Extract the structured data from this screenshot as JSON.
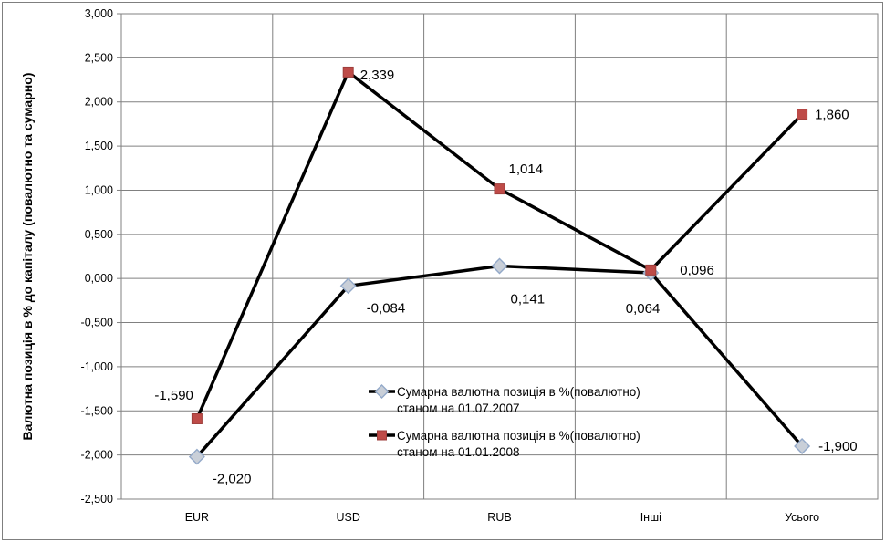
{
  "chart_data": {
    "type": "line",
    "title": "",
    "xlabel": "",
    "ylabel": "Валютна позиція в % до капіталу (повалютно та сумарно)",
    "categories": [
      "EUR",
      "USD",
      "RUB",
      "Інші",
      "Усього"
    ],
    "series": [
      {
        "name": "Сумарна валютна позиція в %(повалютно) станом на 01.07.2007",
        "legend_lines": [
          "Сумарна валютна позиція в %(повалютно)",
          "станом на 01.07.2007"
        ],
        "marker": "diamond",
        "marker_fill": "#c9cfd8",
        "marker_stroke": "#93a9c9",
        "line_color": "#000000",
        "values": [
          -2.02,
          -0.084,
          0.141,
          0.064,
          -1.9
        ],
        "labels": [
          "-2,020",
          "-0,084",
          "0,141",
          "0,064",
          "-1,900"
        ]
      },
      {
        "name": "Сумарна валютна позиція в %(повалютно) станом на 01.01.2008",
        "legend_lines": [
          "Сумарна валютна позиція в %(повалютно)",
          "станом на 01.01.2008"
        ],
        "marker": "square",
        "marker_fill": "#be4b48",
        "marker_stroke": "#9e3e3b",
        "line_color": "#000000",
        "values": [
          -1.59,
          2.339,
          1.014,
          0.096,
          1.86
        ],
        "labels": [
          "-1,590",
          "2,339",
          "1,014",
          "0,096",
          "1,860"
        ]
      }
    ],
    "ylim": [
      -2.5,
      3.0
    ],
    "ytick_step": 0.5,
    "ytick_labels_top_to_bottom": [
      "3,000",
      "2,500",
      "2,000",
      "1,500",
      "1,000",
      "0,500",
      "0,000",
      "-0,500",
      "-1,000",
      "-1,500",
      "-2,000",
      "-2,500"
    ],
    "grid": "on",
    "legend_position": "inside-bottom-center",
    "colors": {
      "grid": "#808080",
      "plot_border": "#808080",
      "outer_border": "#7f7f7f",
      "axis_text": "#000000",
      "data_label_text": "#000000",
      "background": "#ffffff"
    }
  }
}
